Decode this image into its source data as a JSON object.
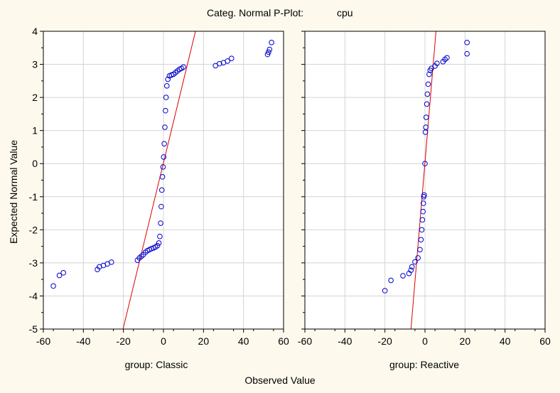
{
  "title": "Categ. Normal P-Plot:",
  "title_variable": "cpu",
  "xlabel": "Observed Value",
  "ylabel": "Expected Normal Value",
  "chart_data": {
    "type": "scatter",
    "title": "Categ. Normal P-Plot:",
    "variable": "cpu",
    "xlabel": "Observed Value",
    "ylabel": "Expected Normal Value",
    "xlim": [
      -60,
      60
    ],
    "ylim": [
      -5,
      4
    ],
    "xticks": [
      -60,
      -40,
      -20,
      0,
      20,
      40,
      60
    ],
    "yticks": [
      -5,
      -4,
      -3,
      -2,
      -1,
      0,
      1,
      2,
      3,
      4
    ],
    "grid": true,
    "marker_color": "#0000cc",
    "line_color": "#dd0000",
    "panels": [
      {
        "label": "group: Classic",
        "reference_line": [
          [
            -20.2,
            -5
          ],
          [
            16,
            4
          ]
        ],
        "points": [
          [
            -55,
            -3.7
          ],
          [
            -52,
            -3.38
          ],
          [
            -50,
            -3.3
          ],
          [
            -33,
            -3.2
          ],
          [
            -32,
            -3.12
          ],
          [
            -30,
            -3.08
          ],
          [
            -28,
            -3.03
          ],
          [
            -26,
            -2.98
          ],
          [
            -13,
            -2.92
          ],
          [
            -12,
            -2.85
          ],
          [
            -11,
            -2.8
          ],
          [
            -10,
            -2.75
          ],
          [
            -9,
            -2.68
          ],
          [
            -8,
            -2.63
          ],
          [
            -7,
            -2.6
          ],
          [
            -6,
            -2.57
          ],
          [
            -5,
            -2.55
          ],
          [
            -4,
            -2.52
          ],
          [
            -3,
            -2.48
          ],
          [
            -2.3,
            -2.4
          ],
          [
            -1.8,
            -2.2
          ],
          [
            -1.4,
            -1.8
          ],
          [
            -1.1,
            -1.3
          ],
          [
            -0.8,
            -0.8
          ],
          [
            -0.5,
            -0.4
          ],
          [
            -0.2,
            -0.1
          ],
          [
            0.1,
            0.2
          ],
          [
            0.4,
            0.6
          ],
          [
            0.7,
            1.1
          ],
          [
            1.0,
            1.6
          ],
          [
            1.3,
            2.0
          ],
          [
            1.7,
            2.35
          ],
          [
            2.2,
            2.55
          ],
          [
            3,
            2.65
          ],
          [
            4,
            2.68
          ],
          [
            5,
            2.7
          ],
          [
            6,
            2.75
          ],
          [
            7,
            2.8
          ],
          [
            8,
            2.85
          ],
          [
            9,
            2.88
          ],
          [
            10,
            2.92
          ],
          [
            26,
            2.96
          ],
          [
            28,
            3.02
          ],
          [
            30,
            3.05
          ],
          [
            32,
            3.1
          ],
          [
            34,
            3.18
          ],
          [
            52,
            3.3
          ],
          [
            52.5,
            3.37
          ],
          [
            53,
            3.45
          ],
          [
            54,
            3.66
          ]
        ]
      },
      {
        "label": "group: Reactive",
        "reference_line": [
          [
            -7,
            -5
          ],
          [
            5.5,
            4
          ]
        ],
        "points": [
          [
            -20,
            -3.84
          ],
          [
            -17,
            -3.53
          ],
          [
            -11,
            -3.39
          ],
          [
            -8,
            -3.32
          ],
          [
            -7,
            -3.22
          ],
          [
            -6.5,
            -3.12
          ],
          [
            -5,
            -2.97
          ],
          [
            -3.5,
            -2.85
          ],
          [
            -2.5,
            -2.6
          ],
          [
            -2,
            -2.3
          ],
          [
            -1.6,
            -2.0
          ],
          [
            -1.3,
            -1.7
          ],
          [
            -1.0,
            -1.45
          ],
          [
            -0.8,
            -1.2
          ],
          [
            -0.6,
            -1.0
          ],
          [
            -0.4,
            -0.95
          ],
          [
            0,
            0
          ],
          [
            0.2,
            0.95
          ],
          [
            0.4,
            1.1
          ],
          [
            0.6,
            1.4
          ],
          [
            0.9,
            1.8
          ],
          [
            1.2,
            2.1
          ],
          [
            1.6,
            2.4
          ],
          [
            2.1,
            2.7
          ],
          [
            2.6,
            2.82
          ],
          [
            3.2,
            2.88
          ],
          [
            5,
            2.95
          ],
          [
            6,
            3.03
          ],
          [
            9,
            3.08
          ],
          [
            10,
            3.15
          ],
          [
            11,
            3.2
          ],
          [
            21,
            3.32
          ],
          [
            21,
            3.66
          ]
        ]
      }
    ]
  }
}
